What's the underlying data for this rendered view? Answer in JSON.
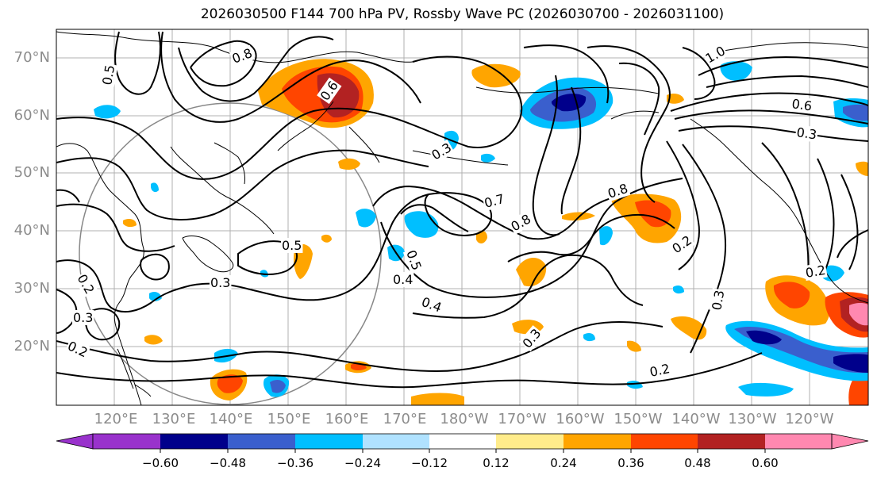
{
  "title": "2026030500 F144 700 hPa PV, Rossby Wave PC (2026030700 - 2026031100)",
  "lat_labels": [
    "70°N",
    "60°N",
    "50°N",
    "40°N",
    "30°N",
    "20°N"
  ],
  "lon_labels": [
    "120°E",
    "130°E",
    "140°E",
    "150°E",
    "160°E",
    "170°E",
    "180°W",
    "170°W",
    "160°W",
    "150°W",
    "140°W",
    "130°W",
    "120°W"
  ],
  "colorbar": {
    "ticks": [
      "−0.60",
      "−0.48",
      "−0.36",
      "−0.24",
      "−0.12",
      "0.12",
      "0.24",
      "0.36",
      "0.48",
      "0.60"
    ],
    "colors": [
      "#9932cc",
      "#00008b",
      "#3a5fcd",
      "#00bfff",
      "#b0e2ff",
      "#ffffff",
      "#ffec8b",
      "#ffa500",
      "#ff4500",
      "#b22222",
      "#ff88b0"
    ]
  },
  "contour_labels": [
    "0.5",
    "0.8",
    "0.6",
    "1.0",
    "0.3",
    "0.7",
    "0.8",
    "0.8",
    "0.6",
    "0.3",
    "0.5",
    "0.2",
    "0.3",
    "0.2",
    "0.4",
    "0.5",
    "0.3",
    "0.4",
    "0.2",
    "0.3",
    "0.2",
    "0.3",
    "0.2"
  ]
}
